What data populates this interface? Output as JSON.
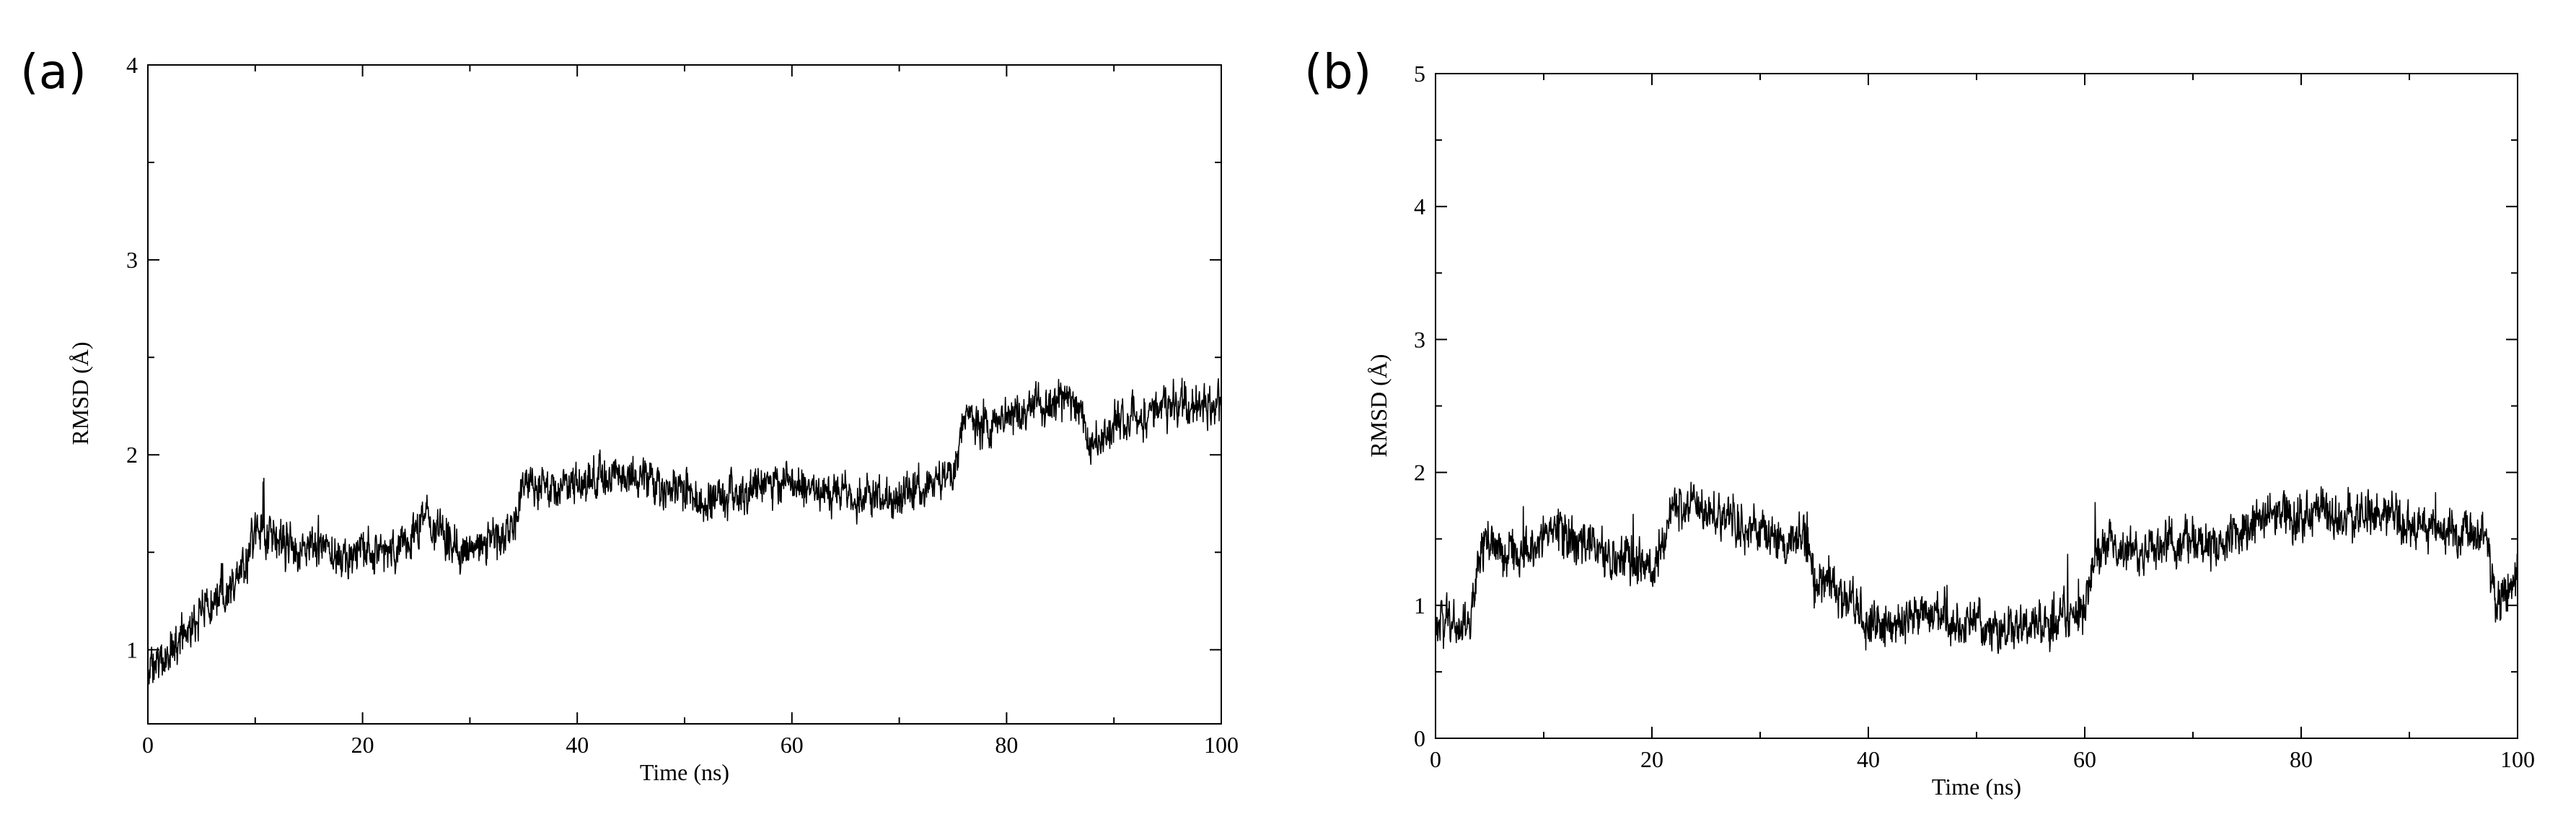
{
  "chart_data": [
    {
      "type": "line",
      "panel_label": "(a)",
      "xlabel": "Time (ns)",
      "ylabel": "RMSD (Å)",
      "xlim": [
        0,
        100
      ],
      "ylim": [
        0.62,
        4
      ],
      "xticks": [
        0,
        20,
        40,
        60,
        80,
        100
      ],
      "yticks": [
        1,
        2,
        3,
        4
      ],
      "grid": false,
      "line_color": "#000000",
      "trend": {
        "x": [
          0,
          1,
          3,
          5,
          7,
          9,
          10,
          12,
          15,
          18,
          20,
          22,
          24,
          26,
          28,
          30,
          32,
          34,
          35,
          38,
          42,
          45,
          48,
          50,
          52,
          55,
          58,
          62,
          66,
          70,
          73,
          75,
          76,
          78,
          80,
          83,
          85,
          87,
          88,
          90,
          93,
          95,
          98,
          100
        ],
        "y": [
          0.9,
          0.92,
          1.05,
          1.2,
          1.3,
          1.45,
          1.62,
          1.55,
          1.52,
          1.48,
          1.5,
          1.5,
          1.55,
          1.68,
          1.55,
          1.5,
          1.55,
          1.65,
          1.85,
          1.82,
          1.88,
          1.9,
          1.85,
          1.82,
          1.75,
          1.8,
          1.85,
          1.82,
          1.78,
          1.8,
          1.85,
          1.9,
          2.15,
          2.15,
          2.2,
          2.25,
          2.3,
          2.2,
          2.05,
          2.15,
          2.2,
          2.3,
          2.25,
          2.25
        ]
      },
      "noise_amplitude": 0.08
    },
    {
      "type": "line",
      "panel_label": "(b)",
      "xlabel": "Time (ns)",
      "ylabel": "RMSD (Å)",
      "xlim": [
        0,
        100
      ],
      "ylim": [
        0,
        5
      ],
      "xticks": [
        0,
        20,
        40,
        60,
        80,
        100
      ],
      "yticks": [
        0,
        1,
        2,
        3,
        4,
        5
      ],
      "grid": false,
      "line_color": "#000000",
      "trend": {
        "x": [
          0,
          1,
          3,
          4,
          5,
          8,
          11,
          14,
          17,
          20,
          21,
          22,
          25,
          28,
          31,
          33,
          34,
          35,
          37,
          39,
          40,
          42,
          45,
          48,
          52,
          55,
          58,
          60,
          61,
          62,
          65,
          70,
          73,
          75,
          77,
          80,
          85,
          90,
          95,
          97,
          98,
          100
        ],
        "y": [
          0.9,
          0.85,
          0.8,
          1.4,
          1.45,
          1.35,
          1.55,
          1.45,
          1.35,
          1.3,
          1.45,
          1.75,
          1.7,
          1.6,
          1.5,
          1.45,
          1.6,
          1.2,
          1.15,
          1.0,
          0.85,
          0.85,
          0.95,
          0.9,
          0.85,
          0.8,
          0.9,
          1.0,
          1.35,
          1.45,
          1.4,
          1.5,
          1.45,
          1.6,
          1.7,
          1.65,
          1.7,
          1.6,
          1.55,
          1.5,
          1.0,
          1.2
        ]
      },
      "noise_amplitude": 0.13
    }
  ]
}
